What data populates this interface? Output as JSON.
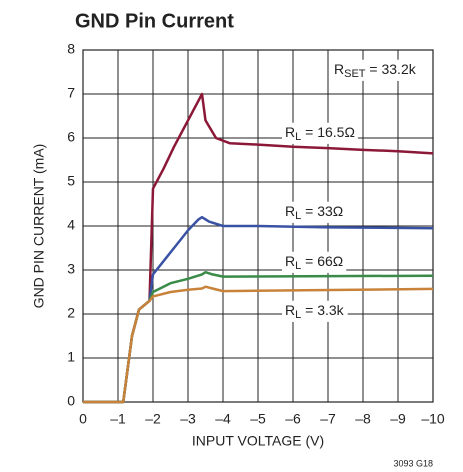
{
  "chart_data": {
    "type": "line",
    "title": "GND Pin Current",
    "xlabel": "INPUT VOLTAGE (V)",
    "ylabel": "GND PIN CURRENT (mA)",
    "footnote": "3093 G18",
    "xlim": [
      0,
      -10
    ],
    "xticks": [
      0,
      {
        "value": -1,
        "label": "–1"
      },
      {
        "value": -2,
        "label": "–2"
      },
      {
        "value": -3,
        "label": "–3"
      },
      {
        "value": -4,
        "label": "–4"
      },
      {
        "value": -5,
        "label": "–5"
      },
      {
        "value": -6,
        "label": "–6"
      },
      {
        "value": -7,
        "label": "–7"
      },
      {
        "value": -8,
        "label": "–8"
      },
      {
        "value": -9,
        "label": "–9"
      },
      {
        "value": -10,
        "label": "–10"
      }
    ],
    "ylim": [
      0,
      8
    ],
    "yticks": [
      0,
      1,
      2,
      3,
      4,
      5,
      6,
      7,
      8
    ],
    "grid": true,
    "annotations": [
      {
        "base": "R",
        "sub": "SET",
        "text": " = 33.2k"
      }
    ],
    "series": [
      {
        "name": {
          "base": "R",
          "sub": "L",
          "text": " = 16.5Ω"
        },
        "color": "#8c1838",
        "x": [
          0,
          -1.15,
          -1.4,
          -1.6,
          -1.9,
          -2.0,
          -2.3,
          -2.6,
          -3.0,
          -3.4,
          -3.5,
          -3.8,
          -4.2,
          -5,
          -6,
          -7,
          -8,
          -9,
          -10
        ],
        "values": [
          0,
          0,
          1.5,
          2.1,
          2.3,
          4.85,
          5.3,
          5.8,
          6.4,
          7.0,
          6.4,
          6.0,
          5.88,
          5.85,
          5.8,
          5.77,
          5.73,
          5.7,
          5.65
        ]
      },
      {
        "name": {
          "base": "R",
          "sub": "L",
          "text": " = 33Ω"
        },
        "color": "#3a52a4",
        "x": [
          0,
          -1.15,
          -1.4,
          -1.6,
          -1.9,
          -2.0,
          -2.3,
          -2.7,
          -3.0,
          -3.3,
          -3.4,
          -3.6,
          -4.0,
          -5,
          -7,
          -10
        ],
        "values": [
          0,
          0,
          1.5,
          2.1,
          2.3,
          2.9,
          3.2,
          3.6,
          3.9,
          4.15,
          4.2,
          4.1,
          4.0,
          4.0,
          3.97,
          3.95
        ]
      },
      {
        "name": {
          "base": "R",
          "sub": "L",
          "text": " = 66Ω"
        },
        "color": "#3a8a48",
        "x": [
          0,
          -1.15,
          -1.4,
          -1.6,
          -1.9,
          -2.0,
          -2.5,
          -3.0,
          -3.4,
          -3.5,
          -3.7,
          -4.0,
          -10
        ],
        "values": [
          0,
          0,
          1.5,
          2.1,
          2.3,
          2.5,
          2.7,
          2.8,
          2.9,
          2.95,
          2.9,
          2.85,
          2.87
        ]
      },
      {
        "name": {
          "base": "R",
          "sub": "L",
          "text": " = 3.3k"
        },
        "color": "#c8823a",
        "x": [
          0,
          -1.15,
          -1.4,
          -1.6,
          -1.9,
          -2.0,
          -2.5,
          -3.0,
          -3.4,
          -3.5,
          -3.7,
          -4.0,
          -10
        ],
        "values": [
          0,
          0,
          1.5,
          2.1,
          2.3,
          2.4,
          2.5,
          2.55,
          2.58,
          2.62,
          2.58,
          2.52,
          2.57
        ]
      }
    ]
  }
}
